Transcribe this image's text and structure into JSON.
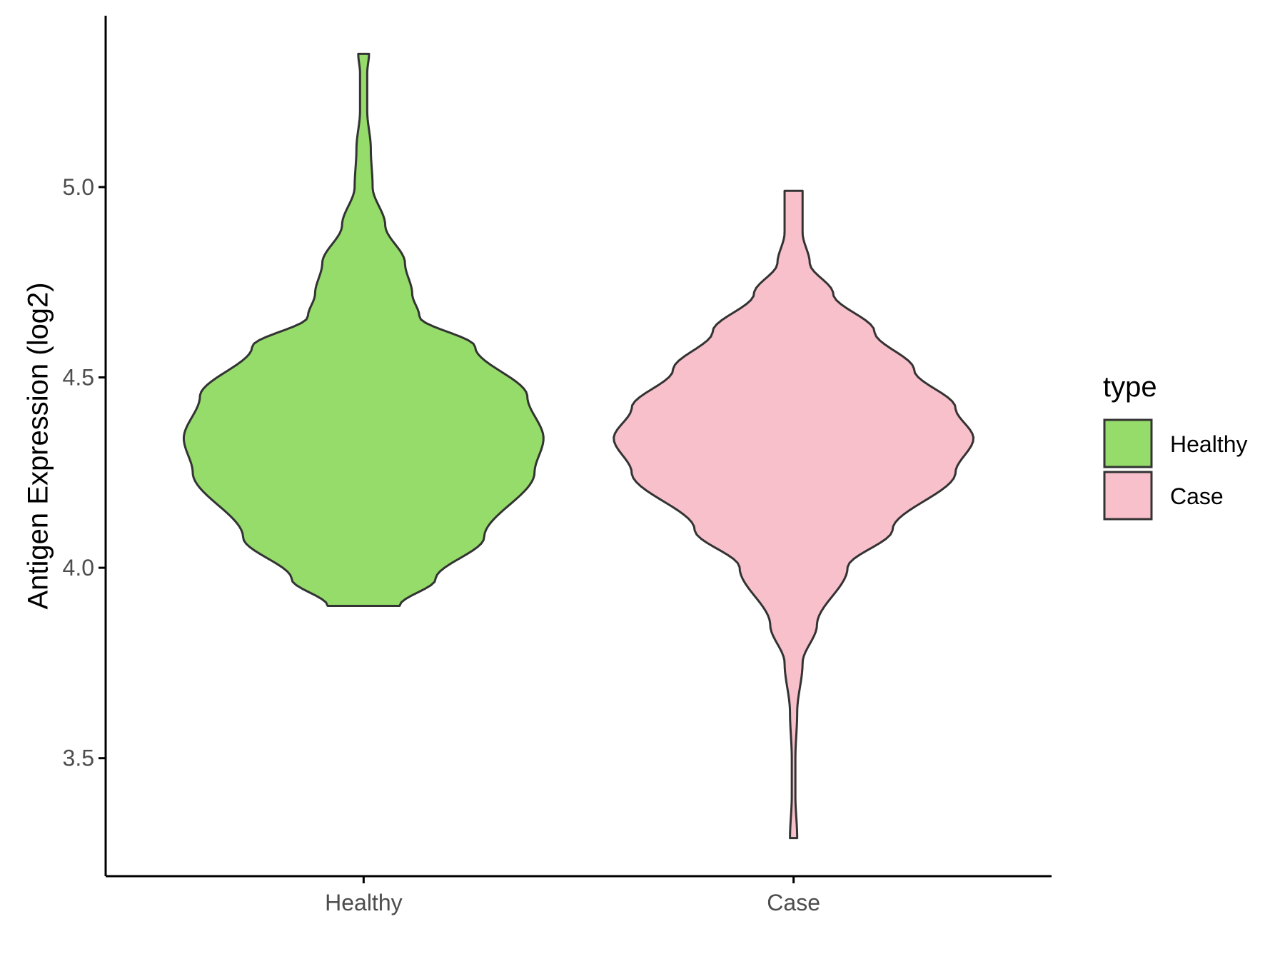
{
  "chart_data": {
    "type": "violin",
    "title": "",
    "xlabel": "",
    "ylabel": "Antigen Expression (log2)",
    "categories": [
      "Healthy",
      "Case"
    ],
    "ylim": [
      3.19,
      5.45
    ],
    "y_ticks": [
      3.5,
      4.0,
      4.5,
      5.0
    ],
    "y_tick_labels": [
      "3.5",
      "4.0",
      "4.5",
      "5.0"
    ],
    "grid": false,
    "legend": {
      "title": "type",
      "position": "right",
      "entries": [
        {
          "name": "Healthy",
          "color": "#95dc6a"
        },
        {
          "name": "Case",
          "color": "#f8c0cb"
        }
      ]
    },
    "series": [
      {
        "name": "Healthy",
        "color": "#95dc6a",
        "min": 3.9,
        "max": 5.35,
        "density_profile": [
          [
            3.9,
            0.2
          ],
          [
            3.97,
            0.4
          ],
          [
            4.08,
            0.67
          ],
          [
            4.25,
            0.95
          ],
          [
            4.34,
            1.0
          ],
          [
            4.45,
            0.91
          ],
          [
            4.58,
            0.62
          ],
          [
            4.66,
            0.31
          ],
          [
            4.72,
            0.27
          ],
          [
            4.8,
            0.23
          ],
          [
            4.9,
            0.12
          ],
          [
            5.0,
            0.05
          ],
          [
            5.1,
            0.04
          ],
          [
            5.2,
            0.02
          ],
          [
            5.3,
            0.02
          ],
          [
            5.35,
            0.03
          ]
        ]
      },
      {
        "name": "Case",
        "color": "#f8c0cb",
        "min": 3.29,
        "max": 4.99,
        "density_profile": [
          [
            3.29,
            0.02
          ],
          [
            3.4,
            0.01
          ],
          [
            3.5,
            0.01
          ],
          [
            3.62,
            0.02
          ],
          [
            3.75,
            0.05
          ],
          [
            3.85,
            0.13
          ],
          [
            4.0,
            0.3
          ],
          [
            4.1,
            0.55
          ],
          [
            4.25,
            0.9
          ],
          [
            4.34,
            1.0
          ],
          [
            4.42,
            0.9
          ],
          [
            4.52,
            0.67
          ],
          [
            4.62,
            0.45
          ],
          [
            4.72,
            0.22
          ],
          [
            4.8,
            0.09
          ],
          [
            4.88,
            0.05
          ],
          [
            4.95,
            0.05
          ],
          [
            4.99,
            0.05
          ]
        ]
      }
    ]
  }
}
